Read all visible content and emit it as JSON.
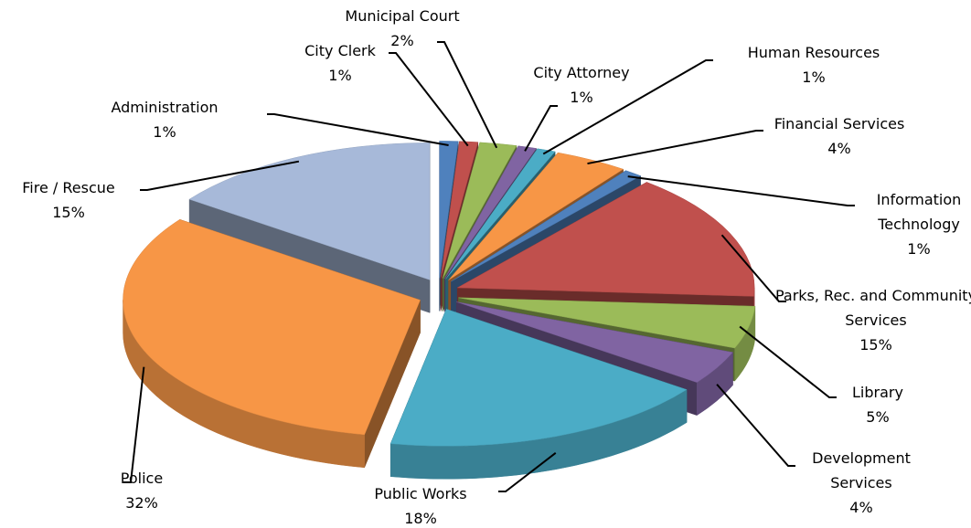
{
  "chart_data": {
    "type": "pie",
    "categories": [
      "Administration",
      "City Clerk",
      "Municipal Court",
      "City Attorney",
      "Human Resources",
      "Financial Services",
      "Information Technology",
      "Parks, Rec. and Community Services",
      "Library",
      "Development Services",
      "Public Works",
      "Police",
      "Fire / Rescue"
    ],
    "values": [
      1,
      1,
      2,
      1,
      1,
      4,
      1,
      15,
      5,
      4,
      18,
      32,
      15
    ],
    "value_labels": [
      "1%",
      "1%",
      "2%",
      "1%",
      "1%",
      "4%",
      "1%",
      "15%",
      "5%",
      "4%",
      "18%",
      "32%",
      "15%"
    ],
    "colors": [
      "#4f81bd",
      "#c0504d",
      "#9bbb59",
      "#8064a2",
      "#4bacc6",
      "#f79646",
      "#4f81bd",
      "#c0504d",
      "#9bbb59",
      "#8064a2",
      "#4bacc6",
      "#f79646",
      "#a7b9d9"
    ]
  }
}
